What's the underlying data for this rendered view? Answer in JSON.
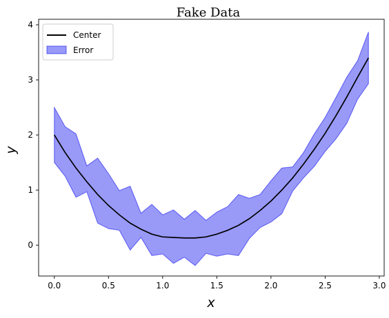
{
  "chart_data": {
    "type": "line",
    "title": "Fake Data",
    "xlabel": "x",
    "ylabel": "y",
    "xlim": [
      -0.145,
      3.045
    ],
    "ylim": [
      -0.56,
      4.1
    ],
    "xticks": [
      0.0,
      0.5,
      1.0,
      1.5,
      2.0,
      2.5,
      3.0
    ],
    "xtick_labels": [
      "0.0",
      "0.5",
      "1.0",
      "1.5",
      "2.0",
      "2.5",
      "3.0"
    ],
    "yticks": [
      0,
      1,
      2,
      3,
      4
    ],
    "ytick_labels": [
      "0",
      "1",
      "2",
      "3",
      "4"
    ],
    "x": [
      0.0,
      0.1,
      0.2,
      0.3,
      0.4,
      0.5,
      0.6,
      0.7,
      0.8,
      0.9,
      1.0,
      1.1,
      1.2,
      1.3,
      1.4,
      1.5,
      1.6,
      1.7,
      1.8,
      1.9,
      2.0,
      2.1,
      2.2,
      2.3,
      2.4,
      2.5,
      2.6,
      2.7,
      2.8,
      2.9
    ],
    "series": [
      {
        "name": "Center",
        "type": "line",
        "color": "#000000",
        "values": [
          2.0,
          1.68,
          1.4,
          1.15,
          0.92,
          0.72,
          0.55,
          0.4,
          0.29,
          0.2,
          0.15,
          0.14,
          0.13,
          0.13,
          0.15,
          0.2,
          0.27,
          0.36,
          0.48,
          0.63,
          0.8,
          1.0,
          1.22,
          1.47,
          1.74,
          2.03,
          2.35,
          2.69,
          3.05,
          3.4
        ]
      },
      {
        "name": "Error",
        "type": "band",
        "color": "#0000ee",
        "opacity": 0.4,
        "upper": [
          2.5,
          2.15,
          2.02,
          1.44,
          1.58,
          1.3,
          0.99,
          1.07,
          0.58,
          0.74,
          0.55,
          0.64,
          0.47,
          0.63,
          0.45,
          0.6,
          0.7,
          0.92,
          0.85,
          0.92,
          1.17,
          1.4,
          1.42,
          1.68,
          2.02,
          2.32,
          2.68,
          3.05,
          3.35,
          3.87
        ],
        "lower": [
          1.5,
          1.25,
          0.87,
          0.97,
          0.4,
          0.3,
          0.27,
          -0.09,
          0.14,
          -0.19,
          -0.16,
          -0.33,
          -0.22,
          -0.37,
          -0.15,
          -0.2,
          -0.16,
          -0.19,
          0.12,
          0.32,
          0.42,
          0.57,
          0.98,
          1.22,
          1.43,
          1.7,
          1.93,
          2.21,
          2.65,
          2.93
        ]
      }
    ],
    "legend": {
      "position": "top-left",
      "entries": [
        "Center",
        "Error"
      ]
    },
    "grid": false
  }
}
